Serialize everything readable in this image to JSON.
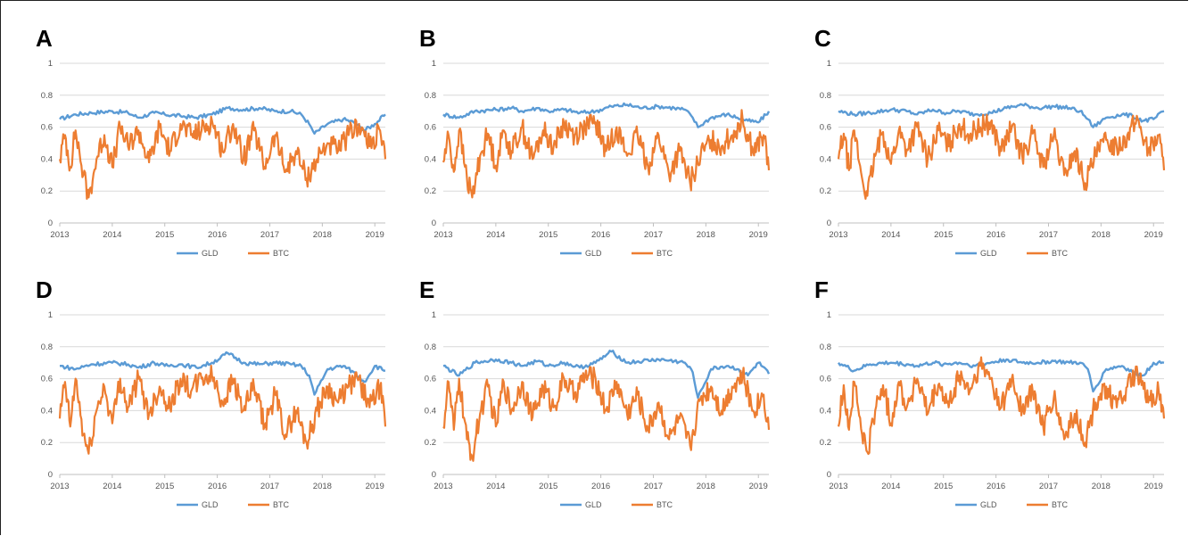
{
  "colors": {
    "gld": "#5b9bd5",
    "btc": "#ed7d31",
    "grid": "#d9d9d9",
    "axis": "#bfbfbf"
  },
  "chart_data": [
    {
      "panel": "A",
      "type": "line",
      "x_ticks": [
        "2013",
        "2014",
        "2015",
        "2016",
        "2017",
        "2018",
        "2019"
      ],
      "y_ticks": [
        "0",
        "0.2",
        "0.4",
        "0.6",
        "0.8",
        "1"
      ],
      "xlim": [
        2013,
        2019.2
      ],
      "ylim": [
        0,
        1
      ],
      "grid": true,
      "legend": "bottom",
      "series": [
        {
          "name": "GLD",
          "color": "#5b9bd5",
          "x": [
            2013,
            2013.3,
            2013.6,
            2014,
            2014.3,
            2014.5,
            2014.8,
            2015,
            2015.3,
            2015.6,
            2015.9,
            2016.2,
            2016.5,
            2016.8,
            2017.1,
            2017.4,
            2017.6,
            2017.75,
            2017.85,
            2018.1,
            2018.4,
            2018.6,
            2018.8,
            2019,
            2019.2
          ],
          "y": [
            0.65,
            0.68,
            0.69,
            0.7,
            0.69,
            0.66,
            0.69,
            0.68,
            0.67,
            0.66,
            0.68,
            0.72,
            0.71,
            0.72,
            0.7,
            0.7,
            0.68,
            0.62,
            0.56,
            0.62,
            0.65,
            0.63,
            0.58,
            0.62,
            0.68
          ]
        },
        {
          "name": "BTC",
          "color": "#ed7d31",
          "x": [
            2013,
            2013.1,
            2013.2,
            2013.3,
            2013.45,
            2013.55,
            2013.7,
            2013.85,
            2014,
            2014.15,
            2014.3,
            2014.5,
            2014.7,
            2014.9,
            2015.1,
            2015.3,
            2015.5,
            2015.7,
            2015.9,
            2016.1,
            2016.3,
            2016.5,
            2016.7,
            2016.9,
            2017.1,
            2017.3,
            2017.5,
            2017.7,
            2017.9,
            2018.1,
            2018.3,
            2018.5,
            2018.7,
            2018.9,
            2019.1,
            2019.2
          ],
          "y": [
            0.4,
            0.55,
            0.35,
            0.58,
            0.3,
            0.16,
            0.4,
            0.55,
            0.35,
            0.6,
            0.48,
            0.58,
            0.38,
            0.6,
            0.45,
            0.62,
            0.55,
            0.58,
            0.64,
            0.45,
            0.62,
            0.4,
            0.58,
            0.35,
            0.55,
            0.32,
            0.45,
            0.28,
            0.4,
            0.5,
            0.45,
            0.55,
            0.62,
            0.48,
            0.58,
            0.4
          ]
        }
      ]
    },
    {
      "panel": "B",
      "type": "line",
      "x_ticks": [
        "2013",
        "2014",
        "2015",
        "2016",
        "2017",
        "2018",
        "2019"
      ],
      "y_ticks": [
        "0",
        "0.2",
        "0.4",
        "0.6",
        "0.8",
        "1"
      ],
      "xlim": [
        2013,
        2019.2
      ],
      "ylim": [
        0,
        1
      ],
      "grid": true,
      "legend": "bottom",
      "series": [
        {
          "name": "GLD",
          "color": "#5b9bd5",
          "x": [
            2013,
            2013.3,
            2013.6,
            2014,
            2014.3,
            2014.5,
            2014.8,
            2015,
            2015.3,
            2015.6,
            2015.9,
            2016.2,
            2016.5,
            2016.8,
            2017.1,
            2017.4,
            2017.6,
            2017.75,
            2017.85,
            2018.1,
            2018.4,
            2018.6,
            2018.8,
            2019,
            2019.2
          ],
          "y": [
            0.68,
            0.66,
            0.7,
            0.71,
            0.72,
            0.7,
            0.72,
            0.7,
            0.71,
            0.69,
            0.7,
            0.73,
            0.74,
            0.72,
            0.73,
            0.72,
            0.71,
            0.66,
            0.6,
            0.66,
            0.68,
            0.66,
            0.64,
            0.63,
            0.7
          ]
        },
        {
          "name": "BTC",
          "color": "#ed7d31",
          "x": [
            2013,
            2013.1,
            2013.2,
            2013.3,
            2013.45,
            2013.55,
            2013.7,
            2013.85,
            2014,
            2014.15,
            2014.3,
            2014.5,
            2014.7,
            2014.9,
            2015.1,
            2015.3,
            2015.5,
            2015.7,
            2015.9,
            2016.1,
            2016.3,
            2016.5,
            2016.7,
            2016.9,
            2017.1,
            2017.3,
            2017.5,
            2017.7,
            2017.9,
            2018.1,
            2018.3,
            2018.5,
            2018.7,
            2018.9,
            2019.1,
            2019.2
          ],
          "y": [
            0.38,
            0.55,
            0.32,
            0.58,
            0.28,
            0.16,
            0.42,
            0.56,
            0.36,
            0.58,
            0.45,
            0.6,
            0.4,
            0.58,
            0.48,
            0.62,
            0.55,
            0.6,
            0.63,
            0.45,
            0.6,
            0.42,
            0.55,
            0.35,
            0.55,
            0.3,
            0.45,
            0.25,
            0.42,
            0.52,
            0.48,
            0.55,
            0.65,
            0.45,
            0.55,
            0.33
          ]
        }
      ]
    },
    {
      "panel": "C",
      "type": "line",
      "x_ticks": [
        "2013",
        "2014",
        "2015",
        "2016",
        "2017",
        "2018",
        "2019"
      ],
      "y_ticks": [
        "0",
        "0.2",
        "0.4",
        "0.6",
        "0.8",
        "1"
      ],
      "xlim": [
        2013,
        2019.2
      ],
      "ylim": [
        0,
        1
      ],
      "grid": true,
      "legend": "bottom",
      "series": [
        {
          "name": "GLD",
          "color": "#5b9bd5",
          "x": [
            2013,
            2013.3,
            2013.6,
            2014,
            2014.3,
            2014.5,
            2014.8,
            2015,
            2015.3,
            2015.6,
            2015.9,
            2016.2,
            2016.5,
            2016.8,
            2017.1,
            2017.4,
            2017.6,
            2017.75,
            2017.85,
            2018.1,
            2018.4,
            2018.6,
            2018.8,
            2019,
            2019.2
          ],
          "y": [
            0.7,
            0.68,
            0.69,
            0.71,
            0.7,
            0.68,
            0.71,
            0.69,
            0.7,
            0.68,
            0.69,
            0.72,
            0.74,
            0.72,
            0.73,
            0.72,
            0.7,
            0.65,
            0.6,
            0.66,
            0.68,
            0.67,
            0.64,
            0.65,
            0.7
          ]
        },
        {
          "name": "BTC",
          "color": "#ed7d31",
          "x": [
            2013,
            2013.1,
            2013.2,
            2013.3,
            2013.45,
            2013.55,
            2013.7,
            2013.85,
            2014,
            2014.15,
            2014.3,
            2014.5,
            2014.7,
            2014.9,
            2015.1,
            2015.3,
            2015.5,
            2015.7,
            2015.9,
            2016.1,
            2016.3,
            2016.5,
            2016.7,
            2016.9,
            2017.1,
            2017.3,
            2017.5,
            2017.7,
            2017.9,
            2018.1,
            2018.3,
            2018.5,
            2018.7,
            2018.9,
            2019.1,
            2019.2
          ],
          "y": [
            0.4,
            0.56,
            0.33,
            0.58,
            0.28,
            0.17,
            0.42,
            0.57,
            0.37,
            0.58,
            0.46,
            0.6,
            0.4,
            0.58,
            0.48,
            0.62,
            0.55,
            0.6,
            0.63,
            0.45,
            0.6,
            0.42,
            0.56,
            0.35,
            0.55,
            0.3,
            0.45,
            0.25,
            0.42,
            0.52,
            0.48,
            0.55,
            0.65,
            0.45,
            0.55,
            0.33
          ]
        }
      ]
    },
    {
      "panel": "D",
      "type": "line",
      "x_ticks": [
        "2013",
        "2014",
        "2015",
        "2016",
        "2017",
        "2018",
        "2019"
      ],
      "y_ticks": [
        "0",
        "0.2",
        "0.4",
        "0.6",
        "0.8",
        "1"
      ],
      "xlim": [
        2013,
        2019.2
      ],
      "ylim": [
        0,
        1
      ],
      "grid": true,
      "legend": "bottom",
      "series": [
        {
          "name": "GLD",
          "color": "#5b9bd5",
          "x": [
            2013,
            2013.3,
            2013.6,
            2014,
            2014.3,
            2014.5,
            2014.8,
            2015,
            2015.3,
            2015.6,
            2015.9,
            2016.2,
            2016.5,
            2016.8,
            2017.1,
            2017.4,
            2017.6,
            2017.75,
            2017.85,
            2018.1,
            2018.4,
            2018.6,
            2018.8,
            2019,
            2019.2
          ],
          "y": [
            0.68,
            0.66,
            0.69,
            0.7,
            0.69,
            0.67,
            0.7,
            0.68,
            0.69,
            0.67,
            0.7,
            0.76,
            0.7,
            0.69,
            0.7,
            0.69,
            0.68,
            0.62,
            0.5,
            0.66,
            0.68,
            0.64,
            0.58,
            0.68,
            0.65
          ]
        },
        {
          "name": "BTC",
          "color": "#ed7d31",
          "x": [
            2013,
            2013.1,
            2013.2,
            2013.3,
            2013.45,
            2013.55,
            2013.7,
            2013.85,
            2014,
            2014.15,
            2014.3,
            2014.5,
            2014.7,
            2014.9,
            2015.1,
            2015.3,
            2015.5,
            2015.7,
            2015.9,
            2016.1,
            2016.3,
            2016.5,
            2016.7,
            2016.9,
            2017.1,
            2017.3,
            2017.5,
            2017.7,
            2017.9,
            2018.1,
            2018.3,
            2018.5,
            2018.7,
            2018.9,
            2019.1,
            2019.2
          ],
          "y": [
            0.35,
            0.58,
            0.3,
            0.6,
            0.25,
            0.13,
            0.4,
            0.55,
            0.32,
            0.6,
            0.42,
            0.6,
            0.38,
            0.55,
            0.42,
            0.6,
            0.52,
            0.6,
            0.62,
            0.45,
            0.6,
            0.4,
            0.55,
            0.3,
            0.5,
            0.25,
            0.4,
            0.2,
            0.4,
            0.55,
            0.45,
            0.55,
            0.6,
            0.42,
            0.55,
            0.3
          ]
        }
      ]
    },
    {
      "panel": "E",
      "type": "line",
      "x_ticks": [
        "2013",
        "2014",
        "2015",
        "2016",
        "2017",
        "2018",
        "2019"
      ],
      "y_ticks": [
        "0",
        "0.2",
        "0.4",
        "0.6",
        "0.8",
        "1"
      ],
      "xlim": [
        2013,
        2019.2
      ],
      "ylim": [
        0,
        1
      ],
      "grid": true,
      "legend": "bottom",
      "series": [
        {
          "name": "GLD",
          "color": "#5b9bd5",
          "x": [
            2013,
            2013.3,
            2013.6,
            2014,
            2014.3,
            2014.5,
            2014.8,
            2015,
            2015.3,
            2015.6,
            2015.9,
            2016.2,
            2016.5,
            2016.8,
            2017.1,
            2017.4,
            2017.6,
            2017.75,
            2017.85,
            2018.1,
            2018.4,
            2018.6,
            2018.8,
            2019,
            2019.2
          ],
          "y": [
            0.68,
            0.62,
            0.7,
            0.72,
            0.7,
            0.68,
            0.71,
            0.68,
            0.7,
            0.67,
            0.7,
            0.77,
            0.7,
            0.71,
            0.72,
            0.71,
            0.7,
            0.64,
            0.48,
            0.66,
            0.68,
            0.66,
            0.62,
            0.7,
            0.63
          ]
        },
        {
          "name": "BTC",
          "color": "#ed7d31",
          "x": [
            2013,
            2013.1,
            2013.2,
            2013.3,
            2013.45,
            2013.55,
            2013.7,
            2013.85,
            2014,
            2014.15,
            2014.3,
            2014.5,
            2014.7,
            2014.9,
            2015.1,
            2015.3,
            2015.5,
            2015.7,
            2015.9,
            2016.1,
            2016.3,
            2016.5,
            2016.7,
            2016.9,
            2017.1,
            2017.3,
            2017.5,
            2017.7,
            2017.9,
            2018.1,
            2018.3,
            2018.5,
            2018.7,
            2018.9,
            2019.1,
            2019.2
          ],
          "y": [
            0.3,
            0.58,
            0.28,
            0.6,
            0.22,
            0.11,
            0.38,
            0.55,
            0.3,
            0.58,
            0.4,
            0.58,
            0.36,
            0.55,
            0.42,
            0.6,
            0.5,
            0.62,
            0.6,
            0.4,
            0.58,
            0.38,
            0.5,
            0.28,
            0.45,
            0.22,
            0.35,
            0.18,
            0.48,
            0.55,
            0.4,
            0.55,
            0.62,
            0.4,
            0.5,
            0.28
          ]
        }
      ]
    },
    {
      "panel": "F",
      "type": "line",
      "x_ticks": [
        "2013",
        "2014",
        "2015",
        "2016",
        "2017",
        "2018",
        "2019"
      ],
      "y_ticks": [
        "0",
        "0.2",
        "0.4",
        "0.6",
        "0.8",
        "1"
      ],
      "xlim": [
        2013,
        2019.2
      ],
      "ylim": [
        0,
        1
      ],
      "grid": true,
      "legend": "bottom",
      "series": [
        {
          "name": "GLD",
          "color": "#5b9bd5",
          "x": [
            2013,
            2013.3,
            2013.6,
            2014,
            2014.3,
            2014.5,
            2014.8,
            2015,
            2015.3,
            2015.6,
            2015.9,
            2016.2,
            2016.5,
            2016.8,
            2017.1,
            2017.4,
            2017.6,
            2017.75,
            2017.85,
            2018.1,
            2018.4,
            2018.6,
            2018.8,
            2019,
            2019.2
          ],
          "y": [
            0.7,
            0.65,
            0.69,
            0.7,
            0.69,
            0.68,
            0.7,
            0.69,
            0.7,
            0.68,
            0.7,
            0.72,
            0.7,
            0.7,
            0.71,
            0.7,
            0.7,
            0.66,
            0.52,
            0.66,
            0.68,
            0.64,
            0.62,
            0.7,
            0.7
          ]
        },
        {
          "name": "BTC",
          "color": "#ed7d31",
          "x": [
            2013,
            2013.1,
            2013.2,
            2013.3,
            2013.45,
            2013.55,
            2013.7,
            2013.85,
            2014,
            2014.15,
            2014.3,
            2014.5,
            2014.7,
            2014.9,
            2015.1,
            2015.3,
            2015.5,
            2015.7,
            2015.9,
            2016.1,
            2016.3,
            2016.5,
            2016.7,
            2016.9,
            2017.1,
            2017.3,
            2017.5,
            2017.7,
            2017.9,
            2018.1,
            2018.3,
            2018.5,
            2018.7,
            2018.9,
            2019.1,
            2019.2
          ],
          "y": [
            0.3,
            0.56,
            0.28,
            0.58,
            0.25,
            0.14,
            0.4,
            0.56,
            0.32,
            0.58,
            0.42,
            0.6,
            0.38,
            0.56,
            0.42,
            0.62,
            0.52,
            0.68,
            0.6,
            0.42,
            0.6,
            0.4,
            0.52,
            0.3,
            0.48,
            0.22,
            0.38,
            0.2,
            0.45,
            0.55,
            0.42,
            0.55,
            0.62,
            0.45,
            0.52,
            0.35
          ]
        }
      ]
    }
  ]
}
